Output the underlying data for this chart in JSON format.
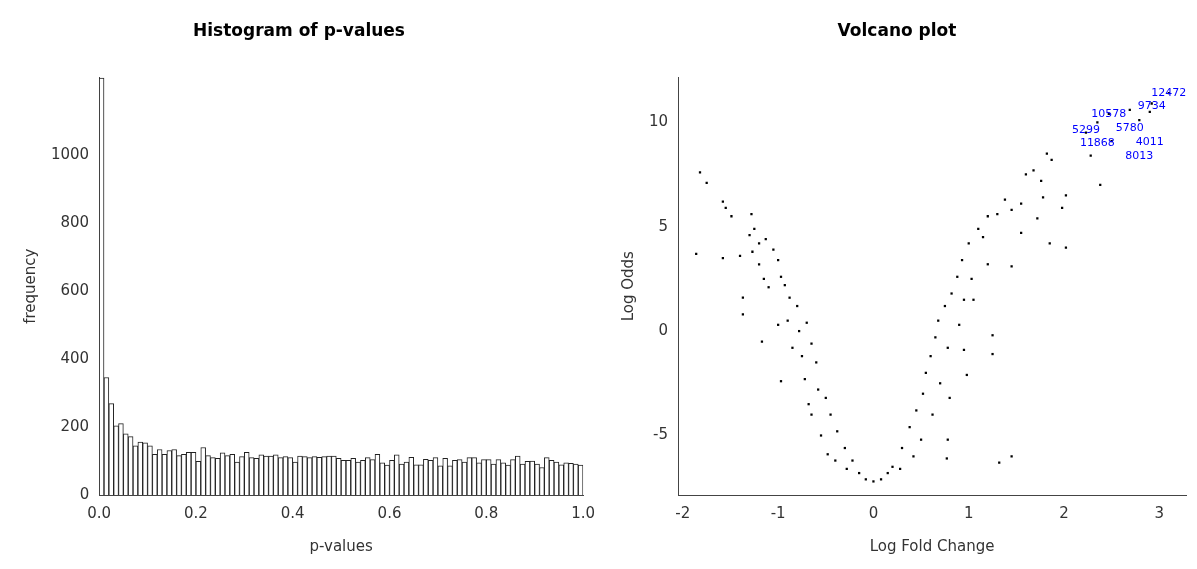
{
  "chart_data": [
    {
      "type": "histogram",
      "title": "Histogram of p-values",
      "xlabel": "p-values",
      "ylabel": "frequency",
      "color": "#ffffff",
      "bins": [
        0,
        0.01,
        0.02,
        0.03,
        0.04,
        0.05,
        0.06,
        0.07,
        0.08,
        0.09,
        0.1,
        0.11,
        0.12,
        0.13,
        0.14,
        0.15,
        0.16,
        0.17,
        0.18,
        0.19,
        0.2,
        0.21,
        0.22,
        0.23,
        0.24,
        0.25,
        0.26,
        0.27,
        0.28,
        0.29,
        0.3,
        0.31,
        0.32,
        0.33,
        0.34,
        0.35,
        0.36,
        0.37,
        0.38,
        0.39,
        0.4,
        0.41,
        0.42,
        0.43,
        0.44,
        0.45,
        0.46,
        0.47,
        0.48,
        0.49,
        0.5,
        0.51,
        0.52,
        0.53,
        0.54,
        0.55,
        0.56,
        0.57,
        0.58,
        0.59,
        0.6,
        0.61,
        0.62,
        0.63,
        0.64,
        0.65,
        0.66,
        0.67,
        0.68,
        0.69,
        0.7,
        0.71,
        0.72,
        0.73,
        0.74,
        0.75,
        0.76,
        0.77,
        0.78,
        0.79,
        0.8,
        0.81,
        0.82,
        0.83,
        0.84,
        0.85,
        0.86,
        0.87,
        0.88,
        0.89,
        0.9,
        0.91,
        0.92,
        0.93,
        0.94,
        0.95,
        0.96,
        0.97,
        0.98,
        0.99,
        1
      ],
      "values": [
        1228,
        346,
        269,
        204,
        210,
        180,
        172,
        145,
        156,
        154,
        145,
        120,
        134,
        120,
        131,
        134,
        116,
        120,
        126,
        126,
        99,
        140,
        116,
        110,
        108,
        124,
        116,
        120,
        97,
        113,
        126,
        110,
        108,
        118,
        115,
        115,
        118,
        110,
        113,
        110,
        97,
        115,
        113,
        110,
        113,
        111,
        113,
        115,
        115,
        108,
        102,
        102,
        108,
        97,
        102,
        110,
        104,
        120,
        95,
        88,
        102,
        118,
        91,
        97,
        111,
        89,
        89,
        105,
        102,
        110,
        86,
        108,
        86,
        102,
        104,
        97,
        110,
        110,
        95,
        104,
        104,
        91,
        104,
        95,
        88,
        104,
        115,
        91,
        99,
        100,
        91,
        81,
        110,
        102,
        97,
        89,
        95,
        93,
        91,
        88
      ],
      "xlim": [
        0,
        1
      ],
      "xticks": [
        {
          "value": 0,
          "label": "0.0"
        },
        0.2,
        0.4,
        0.6,
        0.8,
        {
          "value": 1,
          "label": "1.0"
        }
      ],
      "ylim": [
        0,
        1230
      ],
      "yticks": [
        0,
        200,
        400,
        600,
        800,
        1000
      ],
      "grid": false,
      "legend": false
    },
    {
      "type": "scatter",
      "title": "Volcano plot",
      "xlabel": "Log Fold Change",
      "ylabel": "Log Odds",
      "color": "#000000",
      "marker": "square",
      "x": [
        -1.82,
        -1.75,
        -1.86,
        -1.58,
        -1.55,
        -1.49,
        -1.58,
        -1.4,
        -1.37,
        -1.37,
        -1.28,
        -1.3,
        -1.25,
        -1.27,
        -1.2,
        -1.13,
        -1.05,
        -1.2,
        -1.15,
        -1.1,
        -1.17,
        -1.0,
        -0.97,
        -0.93,
        -1.0,
        -0.97,
        -0.88,
        -0.9,
        -0.85,
        -0.8,
        -0.78,
        -0.75,
        -0.72,
        -0.7,
        -0.65,
        -0.68,
        -0.65,
        -0.6,
        -0.58,
        -0.55,
        -0.5,
        -0.48,
        -0.45,
        -0.4,
        -0.38,
        -0.3,
        -0.28,
        -0.22,
        -0.15,
        -0.08,
        0,
        0.08,
        0.15,
        0.2,
        0.28,
        0.3,
        0.38,
        0.42,
        0.45,
        0.5,
        0.52,
        0.55,
        0.6,
        0.62,
        0.65,
        0.7,
        0.68,
        0.75,
        0.78,
        0.82,
        0.8,
        0.78,
        0.77,
        0.88,
        0.9,
        0.93,
        0.95,
        0.95,
        0.98,
        1.0,
        1.03,
        1.05,
        1.1,
        1.15,
        1.2,
        1.2,
        1.25,
        1.25,
        1.3,
        1.32,
        1.45,
        1.38,
        1.45,
        1.45,
        1.55,
        1.55,
        1.6,
        1.68,
        1.72,
        1.76,
        1.78,
        1.82,
        1.87,
        1.85,
        1.98,
        2.02,
        2.02,
        2.28,
        2.38,
        2.5,
        3.1,
        2.92,
        2.47,
        2.69,
        2.9,
        2.35,
        2.79,
        2.23
      ],
      "values": [
        7.6,
        7.1,
        3.7,
        6.2,
        5.9,
        5.5,
        3.5,
        3.6,
        1.6,
        0.8,
        5.6,
        4.6,
        4.9,
        3.8,
        4.2,
        4.4,
        3.9,
        3.2,
        2.5,
        2.1,
        -0.5,
        3.4,
        2.6,
        2.2,
        0.3,
        -2.4,
        1.6,
        0.5,
        -0.8,
        1.2,
        0.0,
        -1.2,
        -2.3,
        0.4,
        -0.6,
        -3.5,
        -4.0,
        -1.5,
        -2.8,
        -5.0,
        -3.2,
        -5.9,
        -4.0,
        -6.2,
        -4.8,
        -5.6,
        -6.6,
        -6.2,
        -6.8,
        -7.1,
        -7.2,
        -7.1,
        -6.8,
        -6.5,
        -6.6,
        -5.6,
        -4.6,
        -6.0,
        -3.8,
        -5.2,
        -3.0,
        -2.0,
        -1.2,
        -4.0,
        -0.3,
        -2.5,
        0.5,
        1.2,
        -0.8,
        1.8,
        -3.2,
        -5.2,
        -6.1,
        2.6,
        0.3,
        3.4,
        -0.9,
        1.5,
        -2.1,
        4.2,
        2.5,
        1.5,
        4.9,
        4.5,
        5.5,
        3.2,
        -0.2,
        -1.1,
        5.6,
        -6.3,
        -6.0,
        6.3,
        5.8,
        3.1,
        6.1,
        4.7,
        7.5,
        7.7,
        5.4,
        7.2,
        6.4,
        8.5,
        8.2,
        4.2,
        5.9,
        6.5,
        4.0,
        8.4,
        7.0,
        9.1,
        11.4,
        10.9,
        10.4,
        10.6,
        10.5,
        10.0,
        10.1,
        9.5
      ],
      "xlim": [
        -2.05,
        3.28
      ],
      "xticks": [
        -2,
        -1,
        0,
        1,
        2,
        3
      ],
      "ylim": [
        -7.85,
        12.15
      ],
      "yticks": [
        -5,
        0,
        5,
        10
      ],
      "grid": false,
      "legend": false,
      "annotations": [
        {
          "text": "12472",
          "x": 3.1,
          "y": 11.4
        },
        {
          "text": "9734",
          "x": 2.92,
          "y": 10.9
        },
        {
          "text": "10578",
          "x": 2.47,
          "y": 10.4
        },
        {
          "text": "5780",
          "x": 2.69,
          "y": 10.6
        },
        {
          "text": "4011",
          "x": 2.9,
          "y": 10.5
        },
        {
          "text": "11868",
          "x": 2.35,
          "y": 10.0
        },
        {
          "text": "8013",
          "x": 2.79,
          "y": 10.1
        },
        {
          "text": "5299",
          "x": 2.23,
          "y": 9.5
        }
      ]
    }
  ]
}
